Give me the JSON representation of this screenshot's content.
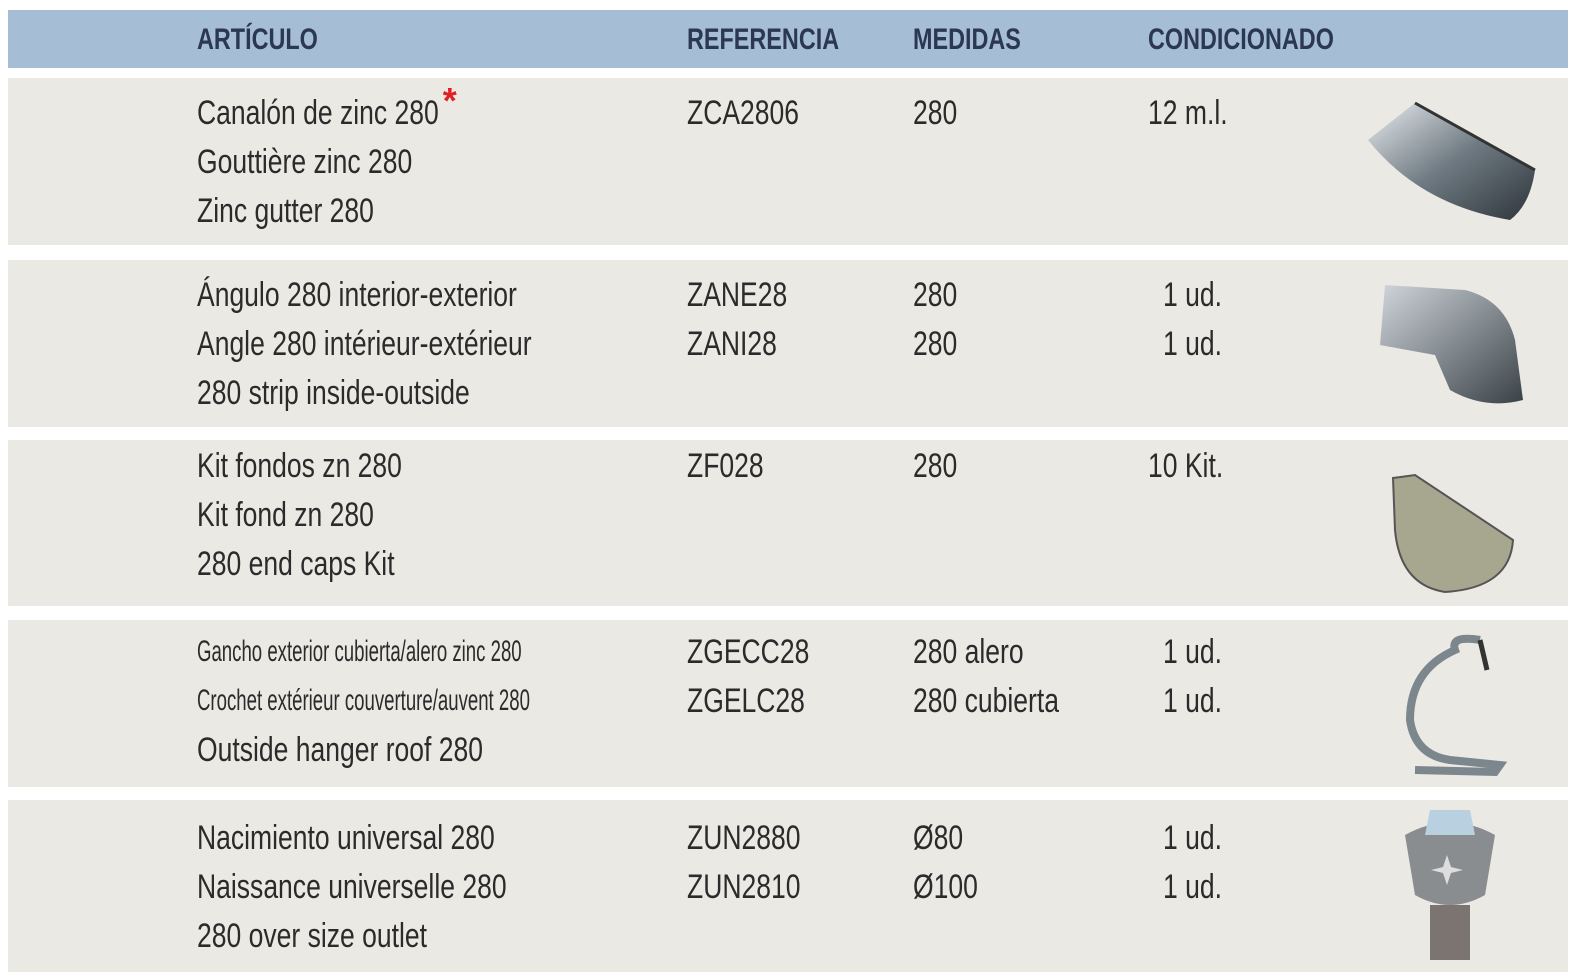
{
  "header": {
    "columns": [
      "ARTÍCULO",
      "REFERENCIA",
      "MEDIDAS",
      "CONDICIONADO"
    ]
  },
  "table": {
    "rows": [
      {
        "article": [
          "Canalón de zinc 280",
          "Gouttière zinc 280",
          "Zinc gutter 280"
        ],
        "note_mark": "*",
        "reference": [
          "ZCA2806"
        ],
        "measures": [
          "280"
        ],
        "packaging": [
          "12 m.l."
        ]
      },
      {
        "article": [
          "Ángulo 280 interior-exterior",
          "Angle 280 intérieur-extérieur",
          "280 strip inside-outside"
        ],
        "reference": [
          "ZANE28",
          "ZANI28"
        ],
        "measures": [
          "280",
          "280"
        ],
        "packaging": [
          "1 ud.",
          "1 ud."
        ]
      },
      {
        "article": [
          "Kit fondos zn 280",
          "Kit fond zn 280",
          "280 end caps Kit"
        ],
        "reference": [
          "ZF028"
        ],
        "measures": [
          "280"
        ],
        "packaging": [
          "10 Kit."
        ]
      },
      {
        "article": [
          "Gancho exterior cubierta/alero zinc 280",
          "Crochet extérieur couverture/auvent 280",
          "Outside hanger roof 280"
        ],
        "reference": [
          "ZGECC28",
          "ZGELC28"
        ],
        "measures": [
          "280 alero",
          "280 cubierta"
        ],
        "packaging": [
          "1 ud.",
          "1 ud."
        ]
      },
      {
        "article": [
          "Nacimiento universal 280",
          "Naissance universelle 280",
          "280 over size outlet"
        ],
        "reference": [
          "ZUN2880",
          "ZUN2810"
        ],
        "measures": [
          "Ø80",
          "Ø100"
        ],
        "packaging": [
          "1 ud.",
          "1 ud."
        ]
      }
    ]
  }
}
